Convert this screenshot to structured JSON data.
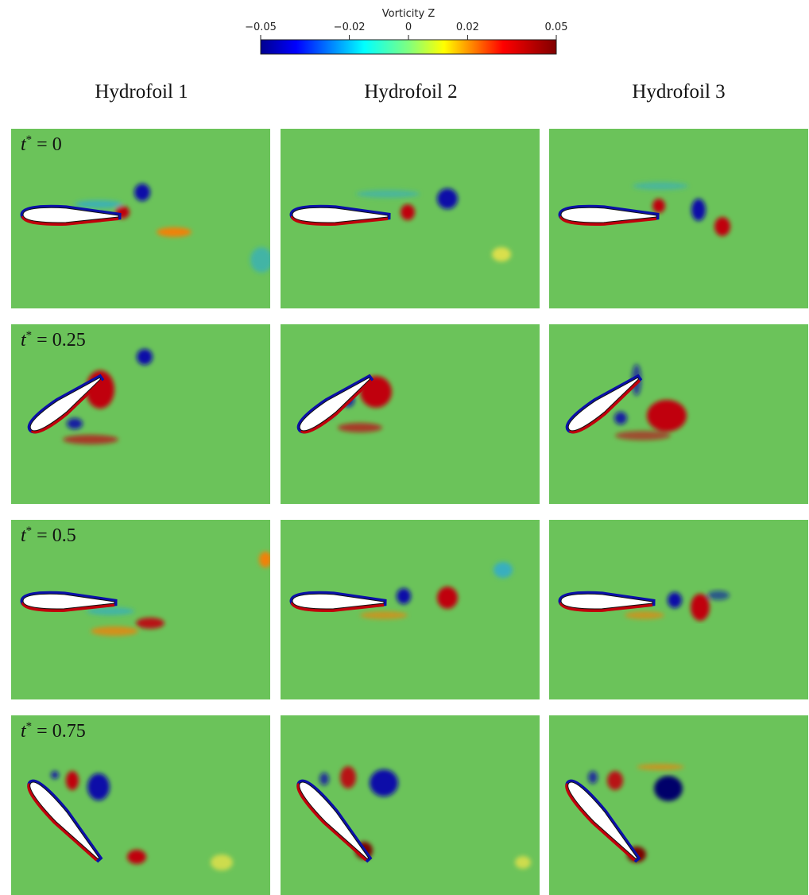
{
  "colorbar": {
    "title": "Vorticity Z",
    "ticks": [
      "−0.05",
      "−0.02",
      "0",
      "0.02",
      "0.05"
    ],
    "tick_values": [
      -0.05,
      -0.02,
      0,
      0.02,
      0.05
    ],
    "range": [
      -0.05,
      0.05
    ],
    "colormap": "jet"
  },
  "columns": [
    "Hydrofoil 1",
    "Hydrofoil 2",
    "Hydrofoil 3"
  ],
  "rows": [
    {
      "t_var": "t",
      "t_sup": "*",
      "t_rest": " = 0"
    },
    {
      "t_var": "t",
      "t_sup": "*",
      "t_rest": " = 0.25"
    },
    {
      "t_var": "t",
      "t_sup": "*",
      "t_rest": " = 0.5"
    },
    {
      "t_var": "t",
      "t_sup": "*",
      "t_rest": " = 0.75"
    }
  ],
  "colors": {
    "background_field": "#6bc35a",
    "positive_vortex": "#c0000b",
    "negative_vortex": "#0a10a8",
    "foil": "#ffffff"
  }
}
